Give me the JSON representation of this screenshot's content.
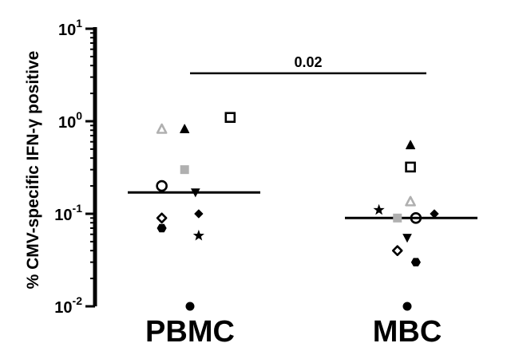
{
  "chart_data": {
    "type": "scatter",
    "ylabel": "% CMV-specific IFN-γ positive",
    "yscale": "log",
    "ylim": [
      0.01,
      10
    ],
    "yticks": [
      {
        "value": 10,
        "base": "10",
        "exp": "1"
      },
      {
        "value": 1,
        "base": "10",
        "exp": "0"
      },
      {
        "value": 0.1,
        "base": "10",
        "exp": "-1"
      },
      {
        "value": 0.01,
        "base": "10",
        "exp": "-2"
      }
    ],
    "categories": [
      "PBMC",
      "MBC"
    ],
    "medians": [
      0.17,
      0.09
    ],
    "significance": {
      "label": "0.02",
      "y": 3.3,
      "from": "PBMC",
      "to": "MBC"
    },
    "points": [
      {
        "category": "PBMC",
        "marker": "triangle-up-open",
        "color": "#b0b0b0",
        "y": 0.82,
        "offset": -0.26
      },
      {
        "category": "PBMC",
        "marker": "triangle-up",
        "color": "#000000",
        "y": 0.82,
        "offset": -0.05
      },
      {
        "category": "PBMC",
        "marker": "square-open",
        "color": "#000000",
        "y": 1.1,
        "offset": 0.37
      },
      {
        "category": "PBMC",
        "marker": "square",
        "color": "#b0b0b0",
        "y": 0.3,
        "offset": -0.05
      },
      {
        "category": "PBMC",
        "marker": "circle-open",
        "color": "#000000",
        "y": 0.2,
        "offset": -0.26
      },
      {
        "category": "PBMC",
        "marker": "triangle-down",
        "color": "#000000",
        "y": 0.17,
        "offset": 0.05
      },
      {
        "category": "PBMC",
        "marker": "diamond",
        "color": "#000000",
        "y": 0.1,
        "offset": 0.08
      },
      {
        "category": "PBMC",
        "marker": "diamond-open",
        "color": "#000000",
        "y": 0.09,
        "offset": -0.26
      },
      {
        "category": "PBMC",
        "marker": "hexagon",
        "color": "#000000",
        "y": 0.07,
        "offset": -0.26
      },
      {
        "category": "PBMC",
        "marker": "star",
        "color": "#000000",
        "y": 0.058,
        "offset": 0.08
      },
      {
        "category": "PBMC",
        "marker": "circle",
        "color": "#000000",
        "y": 0.01,
        "offset": 0
      },
      {
        "category": "MBC",
        "marker": "triangle-up",
        "color": "#000000",
        "y": 0.55,
        "offset": 0.03
      },
      {
        "category": "MBC",
        "marker": "square-open",
        "color": "#000000",
        "y": 0.32,
        "offset": 0.03
      },
      {
        "category": "MBC",
        "marker": "triangle-up-open",
        "color": "#b0b0b0",
        "y": 0.135,
        "offset": 0.03
      },
      {
        "category": "MBC",
        "marker": "star",
        "color": "#000000",
        "y": 0.11,
        "offset": -0.26
      },
      {
        "category": "MBC",
        "marker": "square",
        "color": "#b0b0b0",
        "y": 0.09,
        "offset": -0.09
      },
      {
        "category": "MBC",
        "marker": "circle-open",
        "color": "#000000",
        "y": 0.09,
        "offset": 0.08
      },
      {
        "category": "MBC",
        "marker": "diamond",
        "color": "#000000",
        "y": 0.1,
        "offset": 0.25
      },
      {
        "category": "MBC",
        "marker": "triangle-down",
        "color": "#000000",
        "y": 0.055,
        "offset": 0.0
      },
      {
        "category": "MBC",
        "marker": "diamond-open",
        "color": "#000000",
        "y": 0.04,
        "offset": -0.09
      },
      {
        "category": "MBC",
        "marker": "hexagon",
        "color": "#000000",
        "y": 0.03,
        "offset": 0.08
      },
      {
        "category": "MBC",
        "marker": "circle",
        "color": "#000000",
        "y": 0.01,
        "offset": 0
      }
    ]
  }
}
